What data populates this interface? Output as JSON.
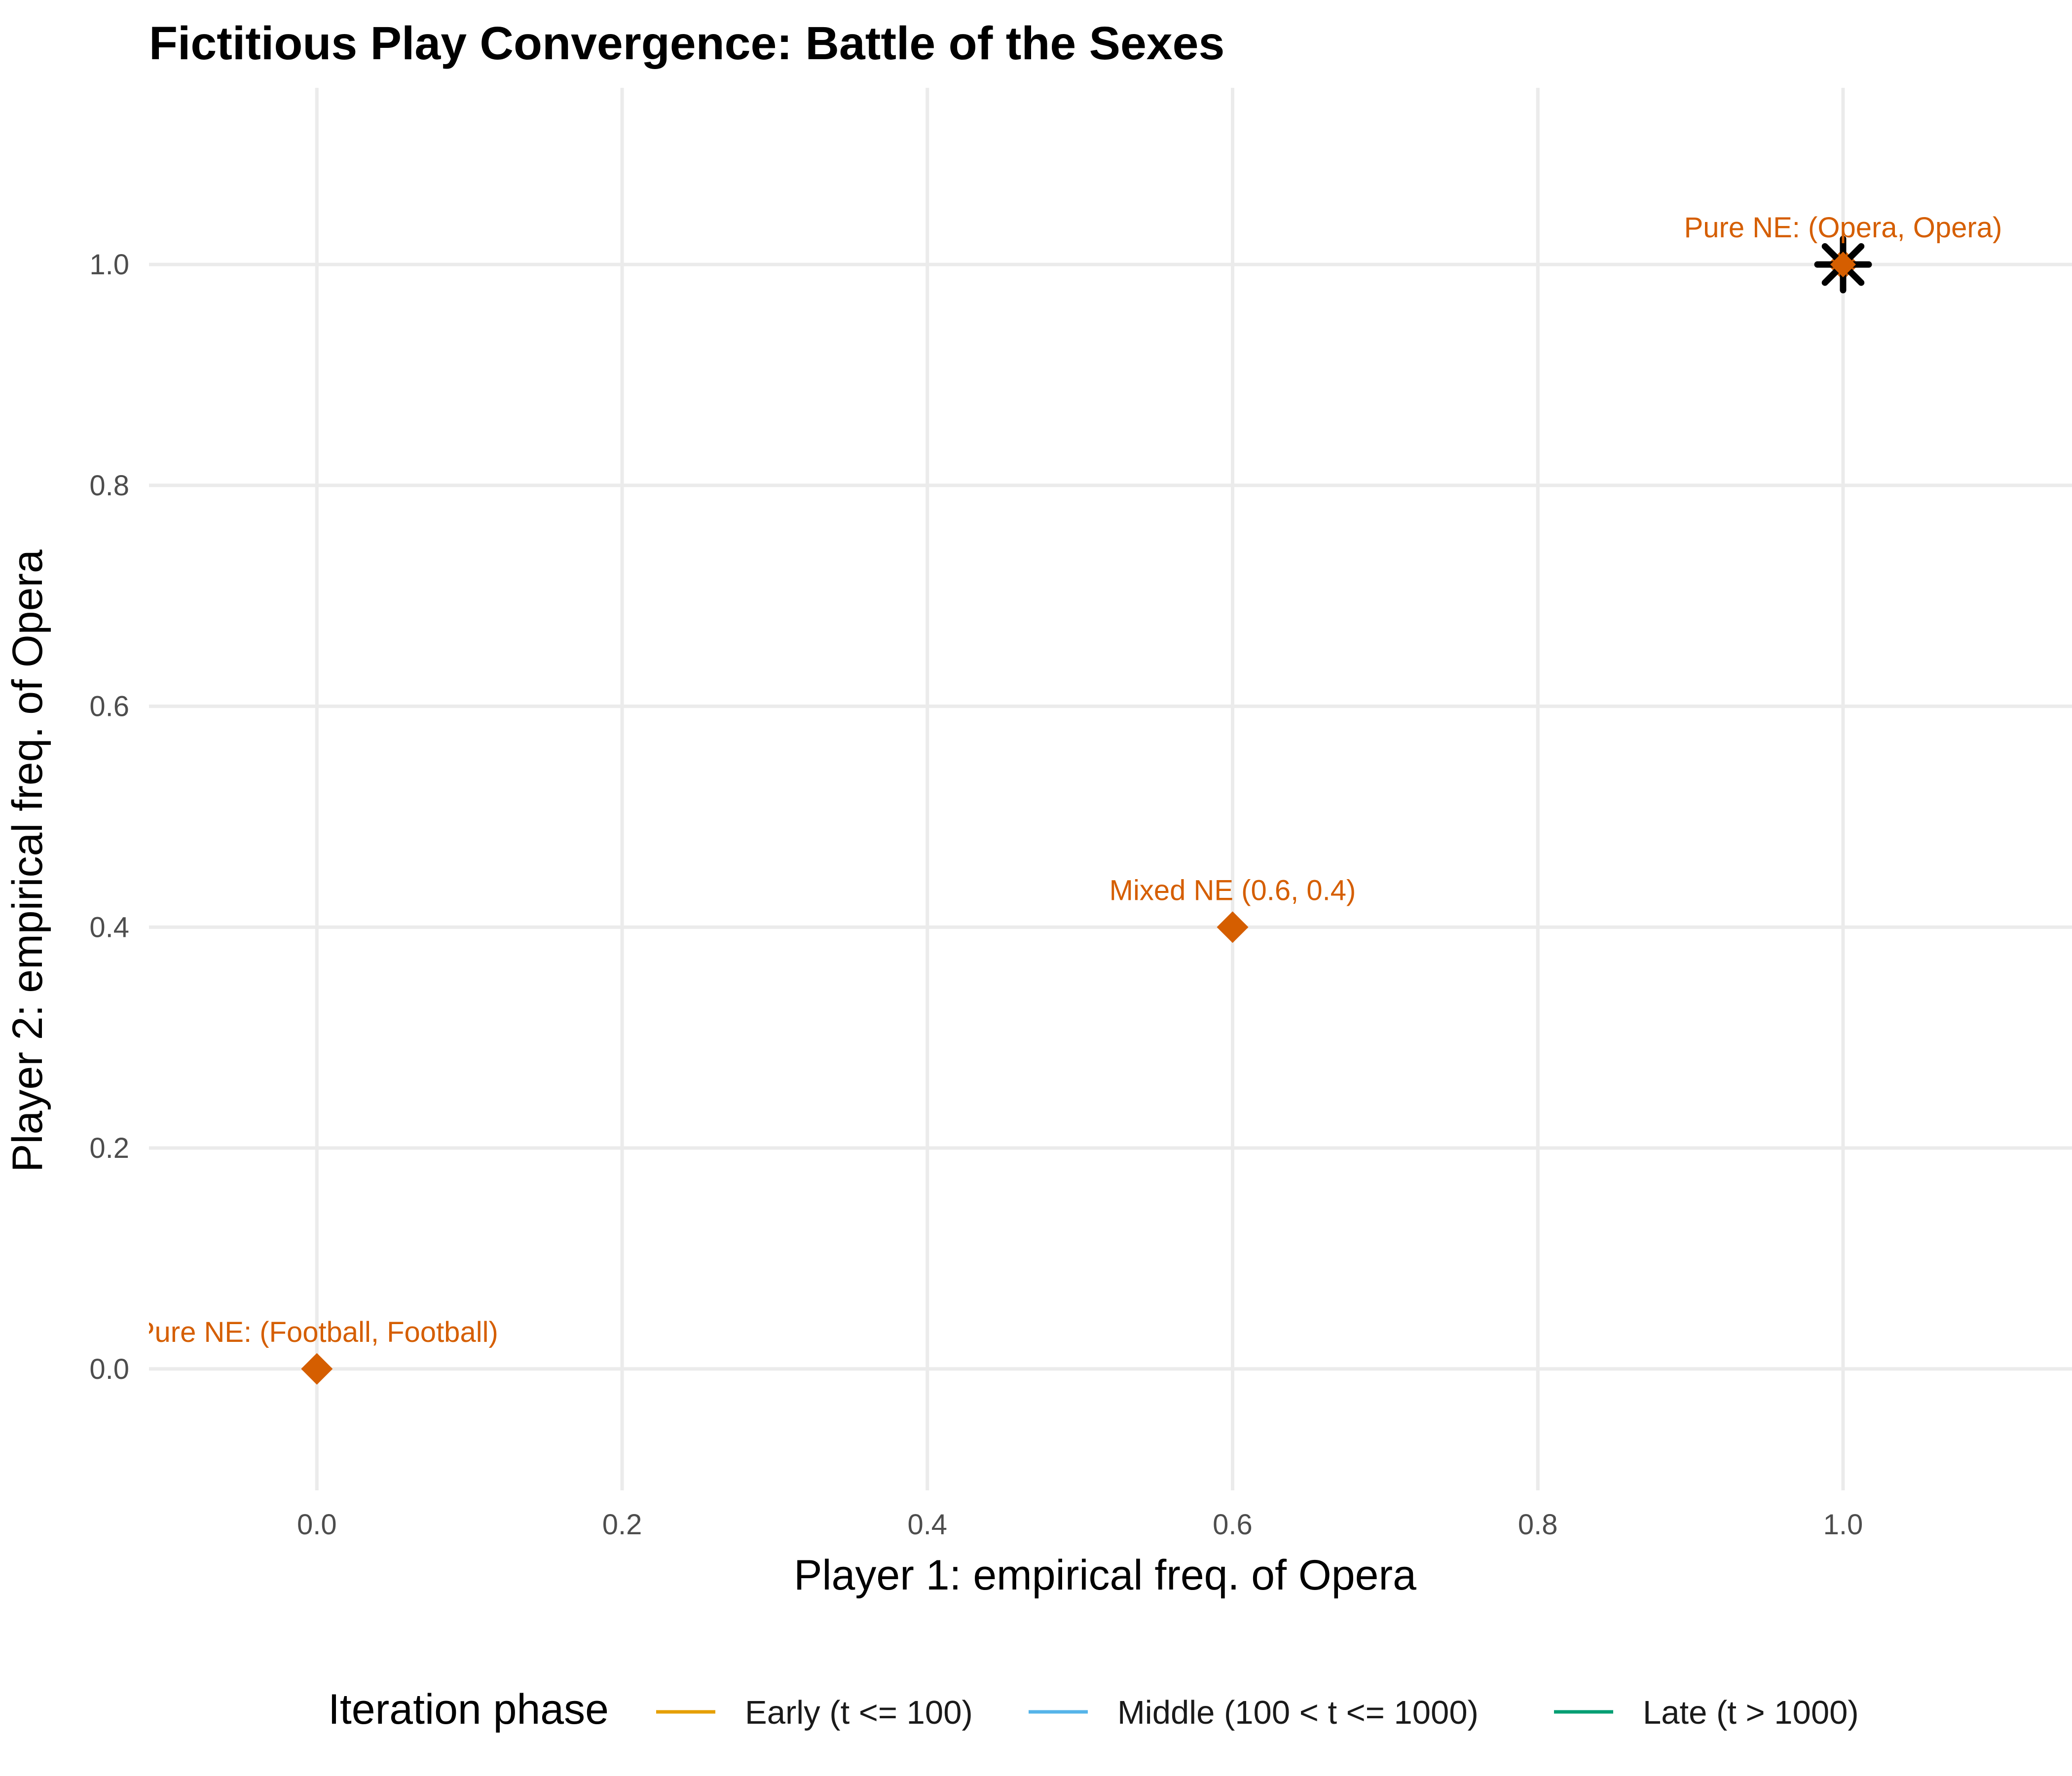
{
  "chart_data": {
    "type": "scatter",
    "title": "Fictitious Play Convergence: Battle of the Sexes",
    "xlabel": "Player 1: empirical freq. of Opera",
    "ylabel": "Player 2: empirical freq. of Opera",
    "xlim": [
      -0.11,
      1.15
    ],
    "ylim": [
      -0.11,
      1.16
    ],
    "grid": true,
    "x_ticks": [
      0.0,
      0.2,
      0.4,
      0.6,
      0.8,
      1.0
    ],
    "y_ticks": [
      0.0,
      0.2,
      0.4,
      0.6,
      0.8,
      1.0
    ],
    "x_tick_labels": [
      "0.0",
      "0.2",
      "0.4",
      "0.6",
      "0.8",
      "1.0"
    ],
    "y_tick_labels": [
      "0.0",
      "0.2",
      "0.4",
      "0.6",
      "0.8",
      "1.0"
    ],
    "equilibria": [
      {
        "x": 0.0,
        "y": 0.0,
        "label": "Pure NE: (Football, Football)"
      },
      {
        "x": 0.6,
        "y": 0.4,
        "label": "Mixed NE (0.6, 0.4)"
      },
      {
        "x": 1.0,
        "y": 1.0,
        "label": "Pure NE: (Opera, Opera)"
      }
    ],
    "final_point": {
      "x": 1.0,
      "y": 1.0,
      "marker": "asterisk"
    },
    "legend": {
      "title": "Iteration phase",
      "position": "bottom",
      "items": [
        {
          "label": "Early (t <= 100)",
          "color": "#E69F00"
        },
        {
          "label": "Middle (100 < t <= 1000)",
          "color": "#56B4E9"
        },
        {
          "label": "Late (t > 1000)",
          "color": "#009E73"
        }
      ]
    },
    "colors": {
      "equilibrium": "#D55E00",
      "final_point": "#000000"
    }
  }
}
